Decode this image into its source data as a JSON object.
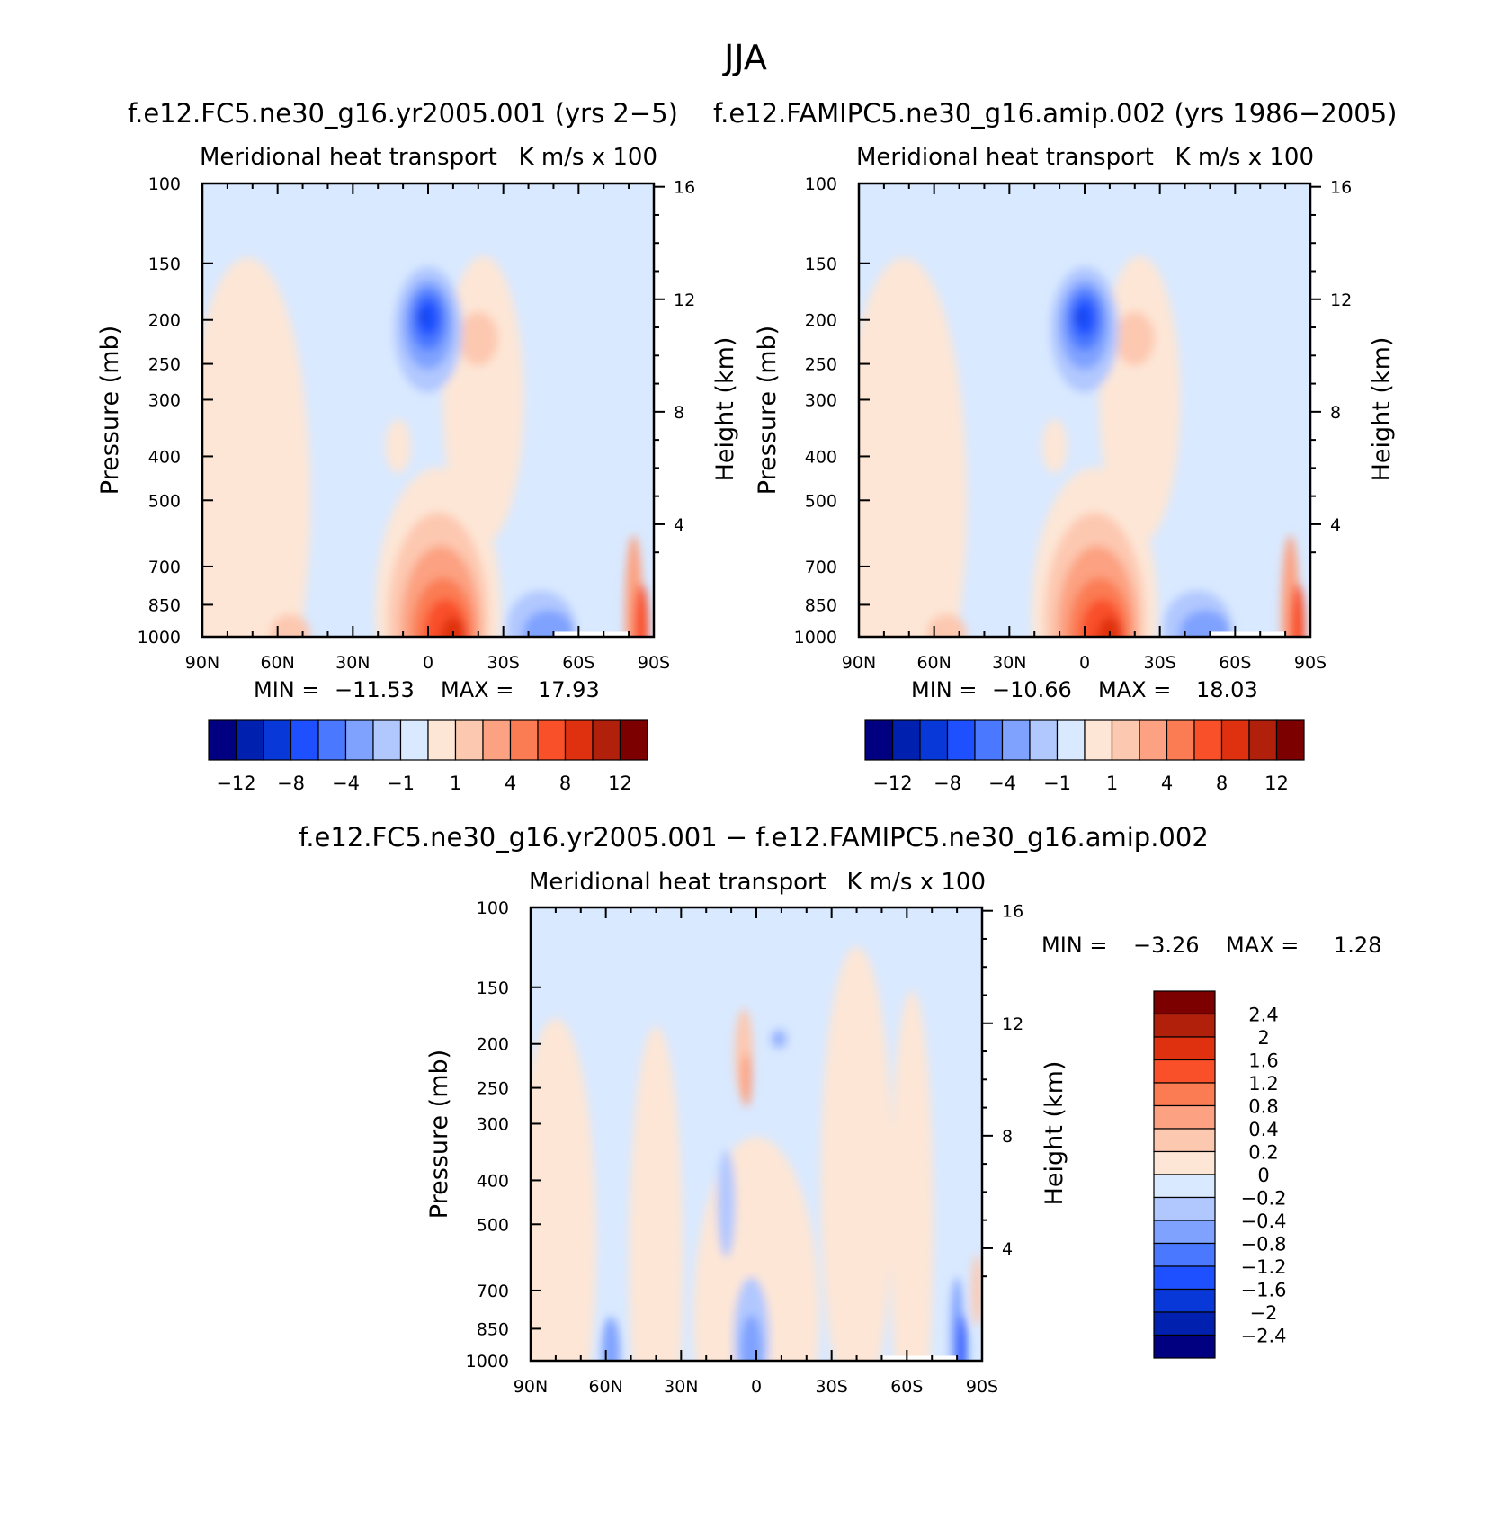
{
  "figure_title": "JJA",
  "colors": {
    "panel_scale": [
      "#000080",
      "#0020B0",
      "#0838D8",
      "#1E50FF",
      "#4A78FF",
      "#7FA2FF",
      "#B1C8FF",
      "#D9E9FF",
      "#FDE6D6",
      "#FDC8B0",
      "#FCA181",
      "#FB7C53",
      "#F9502A",
      "#DF300F",
      "#B0200A",
      "#7D0000"
    ],
    "diff_scale": [
      "#000080",
      "#0020B0",
      "#0838D8",
      "#1E50FF",
      "#4A78FF",
      "#7FA2FF",
      "#B1C8FF",
      "#D9E9FF",
      "#FDE6D6",
      "#FDC8B0",
      "#FCA181",
      "#FB7C53",
      "#F9502A",
      "#DF300F",
      "#B0200A",
      "#7D0000"
    ]
  },
  "chart_data": [
    {
      "type": "heatmap",
      "title": "f.e12.FC5.ne30_g16.yr2005.001 (yrs 2−5)",
      "subtitle_left": "Meridional heat transport",
      "subtitle_right": "K m/s x 100",
      "xlabel": "",
      "ylabel": "Pressure (mb)",
      "ylabel_right": "Height (km)",
      "x_ticks": [
        "90N",
        "60N",
        "30N",
        "0",
        "30S",
        "60S",
        "90S"
      ],
      "y_ticks": [
        "100",
        "150",
        "200",
        "250",
        "300",
        "400",
        "500",
        "700",
        "850",
        "1000"
      ],
      "y_right_ticks": [
        "16",
        "12",
        "8",
        "4"
      ],
      "stats": {
        "min_label": "MIN =",
        "min": "−11.53",
        "max_label": "MAX =",
        "max": "17.93"
      },
      "colorbar_labels": [
        "−12",
        "−8",
        "−4",
        "−1",
        "1",
        "4",
        "8",
        "12"
      ],
      "features": [
        {
          "lat": 0,
          "p": 200,
          "value": -11.5
        },
        {
          "lat": -18,
          "p": 200,
          "value": 2
        },
        {
          "lat": -8,
          "p": 980,
          "value": 17.9
        },
        {
          "lat": -45,
          "p": 960,
          "value": -6
        },
        {
          "lat": -85,
          "p": 950,
          "value": 10
        }
      ]
    },
    {
      "type": "heatmap",
      "title": "f.e12.FAMIPC5.ne30_g16.amip.002 (yrs 1986−2005)",
      "subtitle_left": "Meridional heat transport",
      "subtitle_right": "K m/s x 100",
      "xlabel": "",
      "ylabel": "Pressure (mb)",
      "ylabel_right": "Height (km)",
      "x_ticks": [
        "90N",
        "60N",
        "30N",
        "0",
        "30S",
        "60S",
        "90S"
      ],
      "y_ticks": [
        "100",
        "150",
        "200",
        "250",
        "300",
        "400",
        "500",
        "700",
        "850",
        "1000"
      ],
      "y_right_ticks": [
        "16",
        "12",
        "8",
        "4"
      ],
      "stats": {
        "min_label": "MIN =",
        "min": "−10.66",
        "max_label": "MAX =",
        "max": "18.03"
      },
      "colorbar_labels": [
        "−12",
        "−8",
        "−4",
        "−1",
        "1",
        "4",
        "8",
        "12"
      ],
      "features": [
        {
          "lat": 0,
          "p": 200,
          "value": -10.7
        },
        {
          "lat": -18,
          "p": 200,
          "value": 2
        },
        {
          "lat": -8,
          "p": 980,
          "value": 18.0
        },
        {
          "lat": -45,
          "p": 960,
          "value": -6
        },
        {
          "lat": -85,
          "p": 950,
          "value": 10
        }
      ]
    },
    {
      "type": "heatmap",
      "title": "f.e12.FC5.ne30_g16.yr2005.001 − f.e12.FAMIPC5.ne30_g16.amip.002",
      "subtitle_left": "Meridional heat transport",
      "subtitle_right": "K m/s x 100",
      "xlabel": "",
      "ylabel": "Pressure (mb)",
      "ylabel_right": "Height (km)",
      "x_ticks": [
        "90N",
        "60N",
        "30N",
        "0",
        "30S",
        "60S",
        "90S"
      ],
      "y_ticks": [
        "100",
        "150",
        "200",
        "250",
        "300",
        "400",
        "500",
        "700",
        "850",
        "1000"
      ],
      "y_right_ticks": [
        "16",
        "12",
        "8",
        "4"
      ],
      "stats": {
        "min_label": "MIN =",
        "min": "−3.26",
        "max_label": "MAX =",
        "max": "1.28"
      },
      "colorbar_labels": [
        "2.4",
        "2",
        "1.6",
        "1.2",
        "0.8",
        "0.4",
        "0.2",
        "0",
        "−0.2",
        "−0.4",
        "−0.8",
        "−1.2",
        "−1.6",
        "−2",
        "−2.4"
      ],
      "features": [
        {
          "lat": 5,
          "p": 200,
          "value": 1.2
        },
        {
          "lat": -8,
          "p": 200,
          "value": -0.8
        },
        {
          "lat": -80,
          "p": 900,
          "value": -2.4
        },
        {
          "lat": 55,
          "p": 980,
          "value": -1.6
        }
      ]
    }
  ]
}
